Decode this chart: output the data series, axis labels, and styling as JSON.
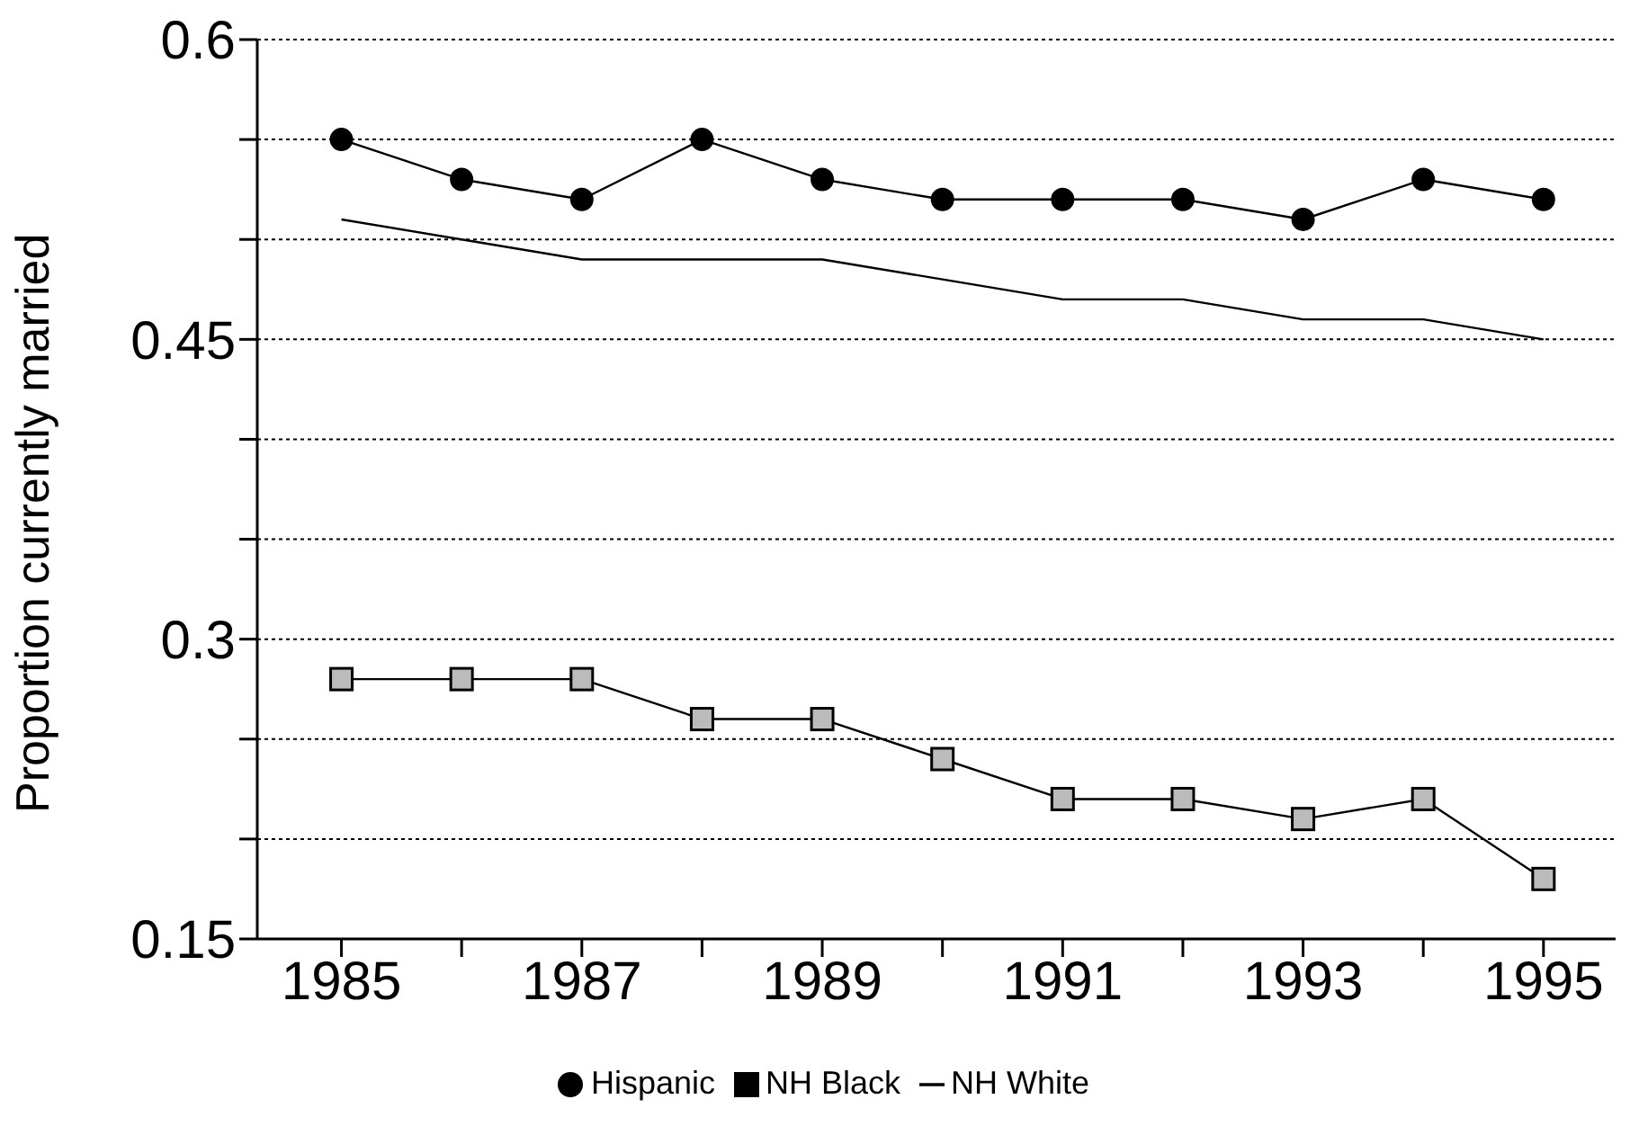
{
  "chart_data": {
    "type": "line",
    "ylabel": "Proportion currently married",
    "x": [
      1985,
      1986,
      1987,
      1988,
      1989,
      1990,
      1991,
      1992,
      1993,
      1994,
      1995
    ],
    "series": [
      {
        "name": "NH White",
        "color": "#000000",
        "marker": "none",
        "values": [
          0.51,
          0.5,
          0.49,
          0.49,
          0.49,
          0.48,
          0.47,
          0.47,
          0.46,
          0.46,
          0.45
        ]
      },
      {
        "name": "NH Black",
        "color": "#000000",
        "marker": "square",
        "values": [
          0.28,
          0.28,
          0.28,
          0.26,
          0.26,
          0.24,
          0.22,
          0.22,
          0.21,
          0.22,
          0.18
        ]
      },
      {
        "name": "Hispanic",
        "color": "#000000",
        "marker": "circle",
        "values": [
          0.55,
          0.53,
          0.52,
          0.55,
          0.53,
          0.52,
          0.52,
          0.52,
          0.51,
          0.53,
          0.52
        ]
      }
    ],
    "xlim": [
      1984.3,
      1995.6
    ],
    "xticks": [
      1985,
      {
        "value": 1986,
        "label": null
      },
      1987,
      {
        "value": 1988,
        "label": null
      },
      1989,
      {
        "value": 1990,
        "label": null
      },
      1991,
      {
        "value": 1992,
        "label": null
      },
      1993,
      {
        "value": 1994,
        "label": null
      },
      1995
    ],
    "ylim": [
      0.15,
      0.6
    ],
    "yticks": [
      0.15,
      {
        "value": 0.2,
        "label": null
      },
      {
        "value": 0.25,
        "label": null
      },
      0.3,
      {
        "value": 0.35,
        "label": null
      },
      {
        "value": 0.4,
        "label": null
      },
      0.45,
      {
        "value": 0.5,
        "label": null
      },
      {
        "value": 0.55,
        "label": null
      },
      0.6
    ],
    "grid": "y",
    "legend": "bottom"
  }
}
